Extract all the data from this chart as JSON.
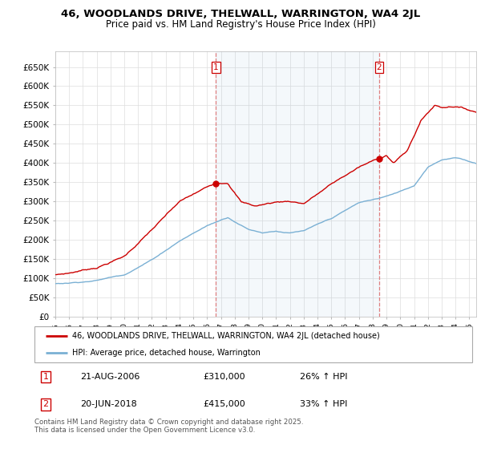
{
  "title_line1": "46, WOODLANDS DRIVE, THELWALL, WARRINGTON, WA4 2JL",
  "title_line2": "Price paid vs. HM Land Registry's House Price Index (HPI)",
  "yticks": [
    0,
    50000,
    100000,
    150000,
    200000,
    250000,
    300000,
    350000,
    400000,
    450000,
    500000,
    550000,
    600000,
    650000
  ],
  "ytick_labels": [
    "£0",
    "£50K",
    "£100K",
    "£150K",
    "£200K",
    "£250K",
    "£300K",
    "£350K",
    "£400K",
    "£450K",
    "£500K",
    "£550K",
    "£600K",
    "£650K"
  ],
  "xlim_start": 1995.0,
  "xlim_end": 2025.5,
  "ylim_min": 0,
  "ylim_max": 690000,
  "property_color": "#cc0000",
  "hpi_color": "#7ab0d4",
  "vline_color": "#e08080",
  "legend_property": "46, WOODLANDS DRIVE, THELWALL, WARRINGTON, WA4 2JL (detached house)",
  "legend_hpi": "HPI: Average price, detached house, Warrington",
  "annotation1_label": "1",
  "annotation1_date": "21-AUG-2006",
  "annotation1_price": "£310,000",
  "annotation1_hpi": "26% ↑ HPI",
  "annotation1_year": 2006.64,
  "annotation1_value": 310000,
  "annotation2_label": "2",
  "annotation2_date": "20-JUN-2018",
  "annotation2_price": "£415,000",
  "annotation2_hpi": "33% ↑ HPI",
  "annotation2_year": 2018.47,
  "annotation2_value": 415000,
  "copyright_text": "Contains HM Land Registry data © Crown copyright and database right 2025.\nThis data is licensed under the Open Government Licence v3.0.",
  "background_color": "#ffffff",
  "grid_color": "#dddddd"
}
